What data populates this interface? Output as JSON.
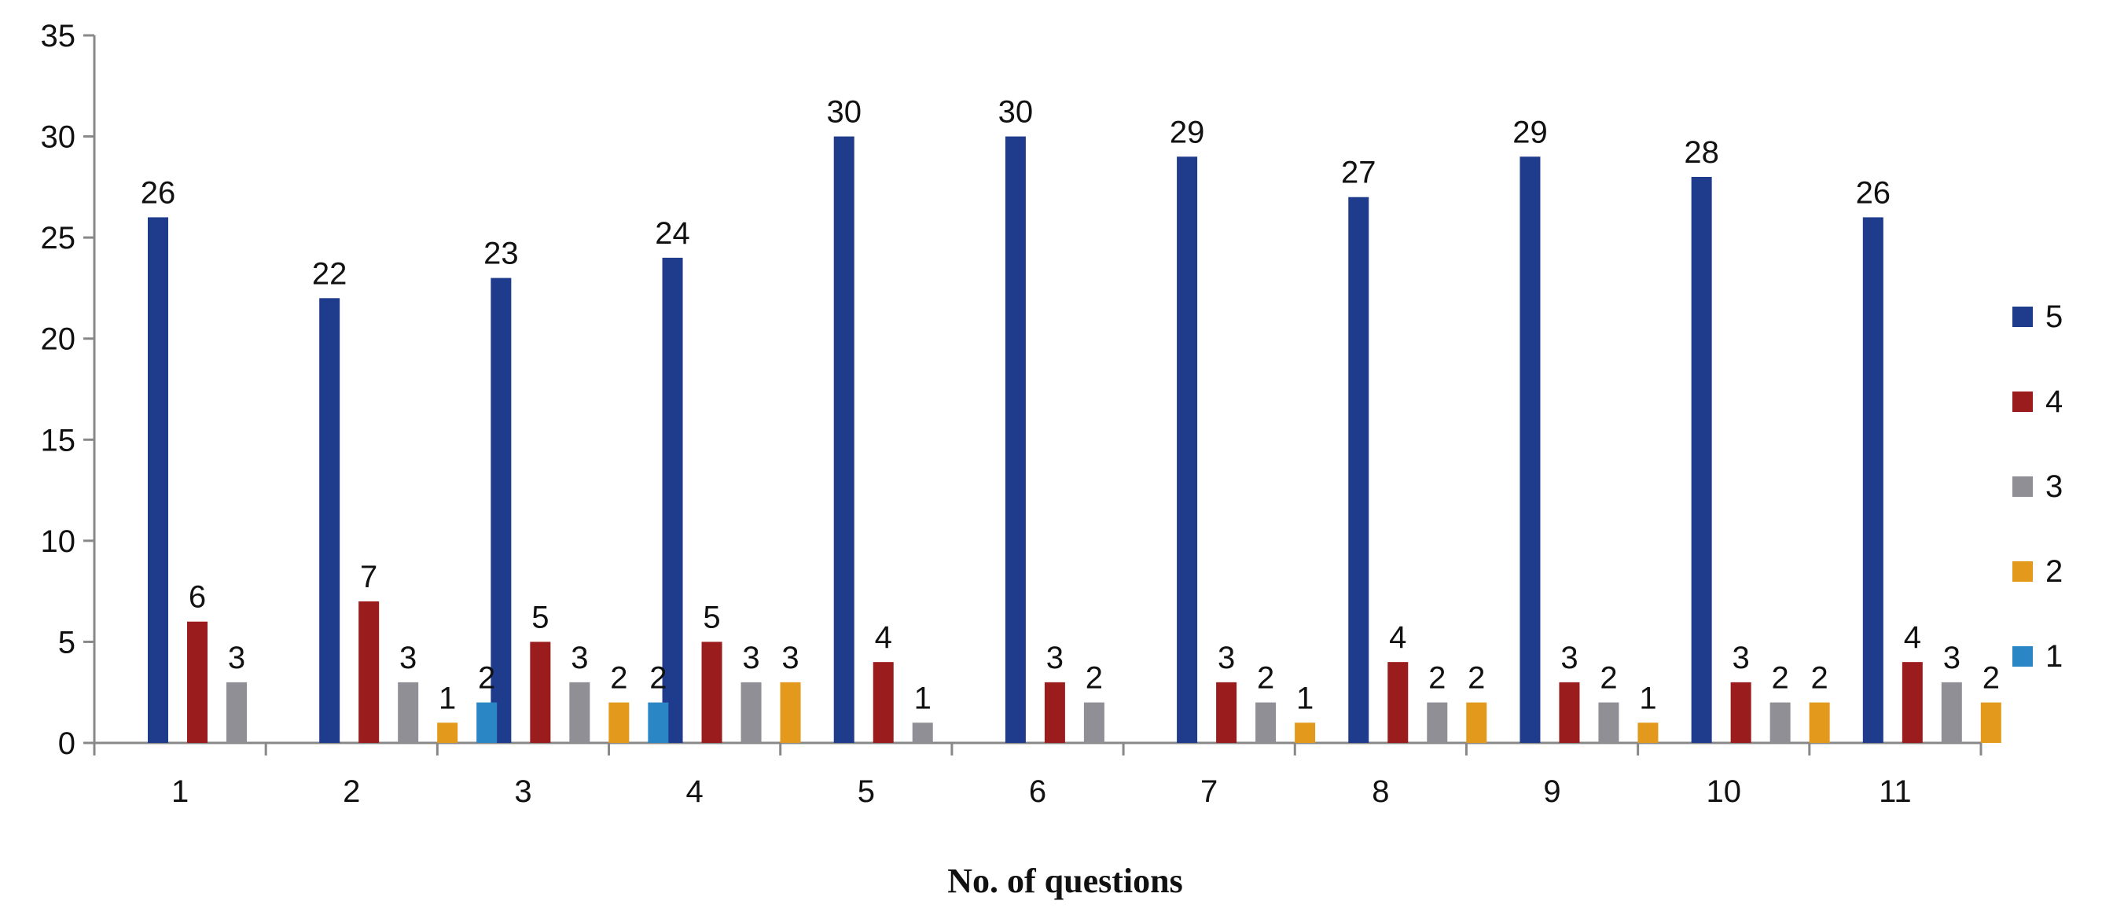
{
  "chart_data": {
    "type": "bar",
    "title": "",
    "xlabel": "No. of questions",
    "ylabel": "",
    "ylim": [
      0,
      35
    ],
    "yticks": [
      0,
      5,
      10,
      15,
      20,
      25,
      30,
      35
    ],
    "grid": false,
    "legend_position": "right",
    "categories": [
      "1",
      "2",
      "3",
      "4",
      "5",
      "6",
      "7",
      "8",
      "9",
      "10",
      "11"
    ],
    "series": [
      {
        "name": "5",
        "color": "#1f3b8c",
        "values": [
          26,
          22,
          23,
          24,
          30,
          30,
          29,
          27,
          29,
          28,
          26
        ]
      },
      {
        "name": "4",
        "color": "#9b1c1c",
        "values": [
          6,
          7,
          5,
          5,
          4,
          3,
          3,
          4,
          3,
          3,
          4
        ]
      },
      {
        "name": "3",
        "color": "#8f8f95",
        "values": [
          3,
          3,
          3,
          3,
          1,
          2,
          2,
          2,
          2,
          2,
          3
        ]
      },
      {
        "name": "2",
        "color": "#e39a1c",
        "values": [
          null,
          1,
          2,
          3,
          null,
          null,
          1,
          2,
          1,
          2,
          2
        ]
      },
      {
        "name": "1",
        "color": "#2b86c5",
        "values": [
          null,
          2,
          2,
          null,
          null,
          null,
          null,
          null,
          null,
          null,
          null
        ]
      }
    ]
  }
}
